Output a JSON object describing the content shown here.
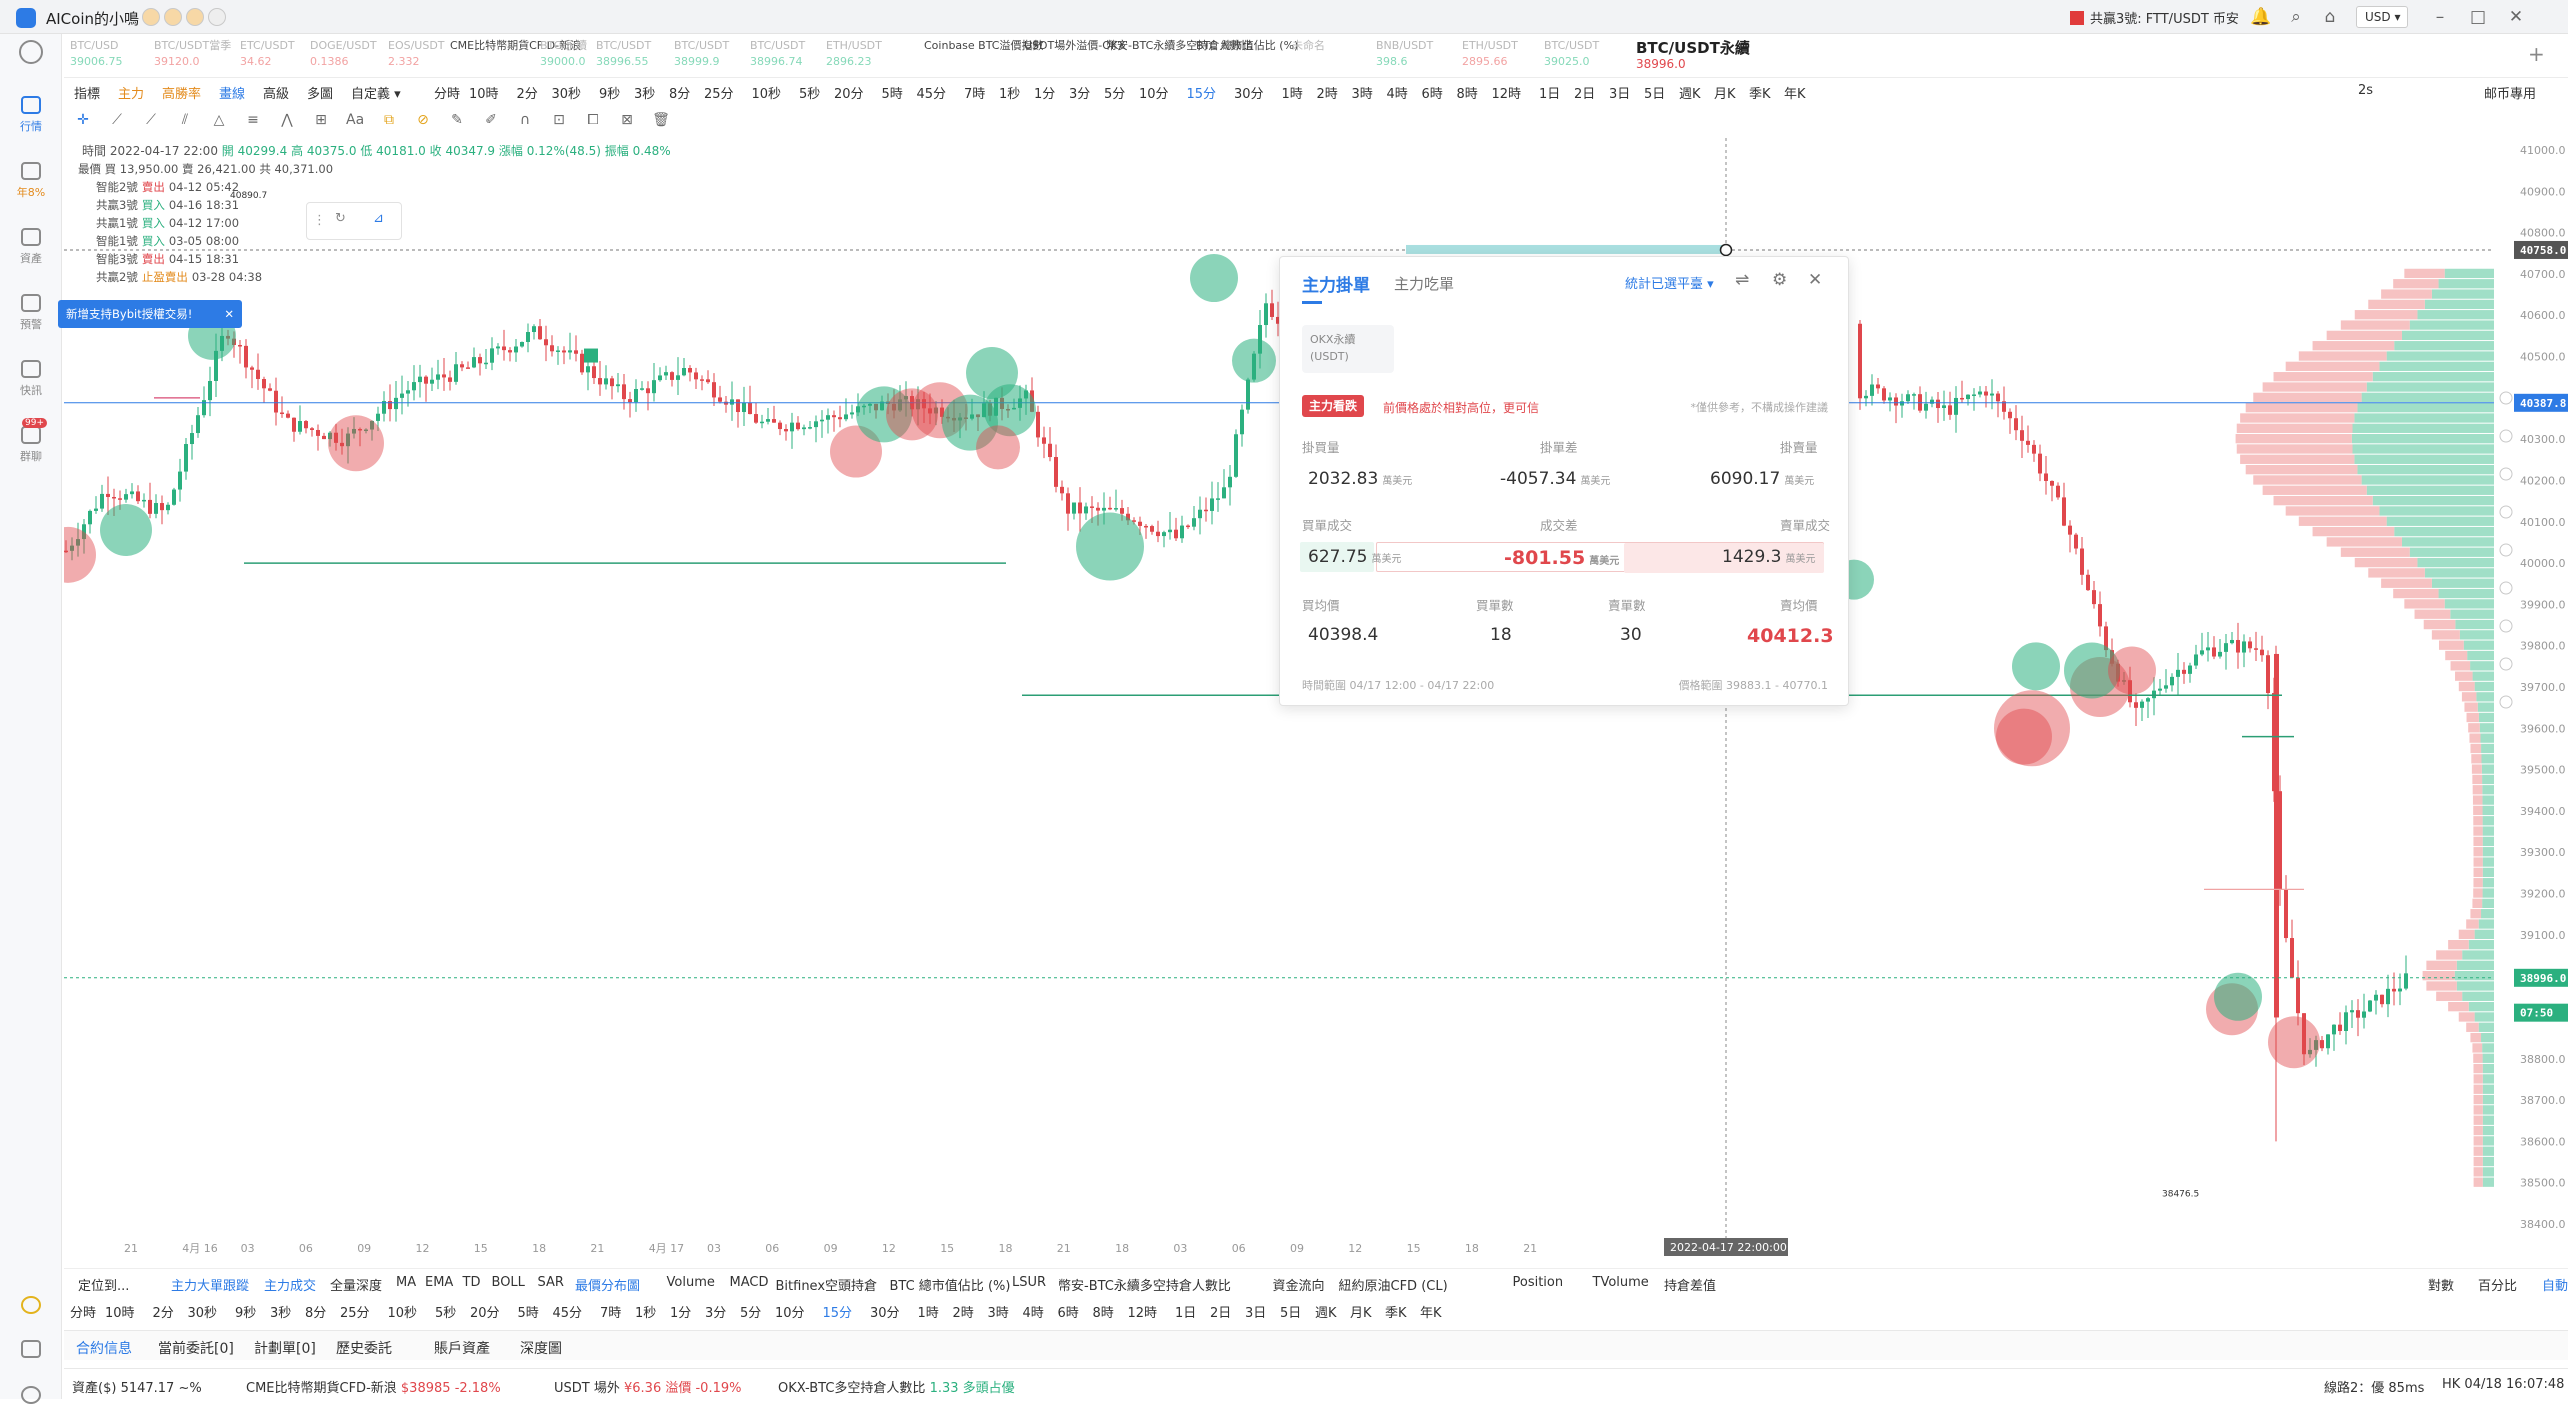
{
  "window": {
    "app_title": "AICoin的小鳴",
    "notice": "共贏3號: FTT/USDT 币安",
    "currency": "USD ▾"
  },
  "sidebar": {
    "items": [
      {
        "label": "行情",
        "icon": "chart-icon"
      },
      {
        "label": "年8%",
        "icon": "crop-icon"
      },
      {
        "label": "資產",
        "icon": "wallet-icon"
      },
      {
        "label": "預警",
        "icon": "alert-icon"
      },
      {
        "label": "快訊",
        "icon": "news-icon"
      },
      {
        "label": "群聊",
        "icon": "chat-icon",
        "badge": "99+"
      }
    ]
  },
  "tickers": [
    {
      "name": "BTC/USD",
      "price": "39006.75",
      "dir": "up"
    },
    {
      "name": "BTC/USDT當季",
      "price": "39120.0",
      "dir": "down"
    },
    {
      "name": "ETC/USDT",
      "price": "34.62",
      "dir": "down"
    },
    {
      "name": "DOGE/USDT",
      "price": "0.1386",
      "dir": "down"
    },
    {
      "name": "EOS/USDT",
      "price": "2.332",
      "dir": "down"
    },
    {
      "name": "CME比特幣期貨CF D-新浪",
      "price": "",
      "dir": "dark"
    },
    {
      "name": "BTC/永續",
      "price": "39000.0",
      "dir": "up"
    },
    {
      "name": "BTC/USDT",
      "price": "38996.55",
      "dir": "up"
    },
    {
      "name": "BTC/USDT",
      "price": "38999.9",
      "dir": "up"
    },
    {
      "name": "BTC/USDT",
      "price": "38996.74",
      "dir": "up"
    },
    {
      "name": "ETH/USDT",
      "price": "2896.23",
      "dir": "up"
    },
    {
      "name": "Coinbase BTC溢價指數",
      "price": "",
      "dir": "dark"
    },
    {
      "name": "USDT場外溢價-OKX",
      "price": "",
      "dir": "dark"
    },
    {
      "name": "幣安-BTC永續多空持倉人數比",
      "price": "",
      "dir": "dark"
    },
    {
      "name": "BTC 總市值佔比 (%)",
      "price": "",
      "dir": "dark"
    },
    {
      "name": "未命名",
      "price": "",
      "dir": "plain"
    },
    {
      "name": "BNB/USDT",
      "price": "398.6",
      "dir": "up"
    },
    {
      "name": "ETH/USDT",
      "price": "2895.66",
      "dir": "down"
    },
    {
      "name": "BTC/USDT",
      "price": "39025.0",
      "dir": "up"
    }
  ],
  "active_ticker": {
    "name": "BTC/USDT永續",
    "price": "38996.0"
  },
  "toolbar": {
    "timeframes": [
      "指標",
      "主力",
      "高勝率",
      "畫線",
      "高級",
      "多圖",
      "自定義 ▾",
      "分時",
      "10時",
      "2分",
      "30秒",
      "9秒",
      "3秒",
      "8分",
      "25分",
      "10秒",
      "5秒",
      "20分",
      "5時",
      "45分",
      "7時",
      "1秒",
      "1分",
      "3分",
      "5分",
      "10分",
      "15分",
      "30分",
      "1時",
      "2時",
      "3時",
      "4時",
      "6時",
      "8時",
      "12時",
      "1日",
      "2日",
      "3日",
      "5日",
      "週K",
      "月K",
      "季K",
      "年K"
    ],
    "active_tf": "15分",
    "right": [
      "2s",
      "邮币專用"
    ]
  },
  "ohlc": {
    "time": "時間 2022-04-17 22:00",
    "open": "開 40299.4",
    "high": "高 40375.0",
    "low": "低 40181.0",
    "close": "收 40347.9",
    "change": "漲幅 0.12%(48.5)",
    "amp": "振幅 0.48%"
  },
  "legend": {
    "head": "最價 買 13,950.00 賣 26,421.00 共 40,371.00",
    "rows": [
      {
        "who": "智能2號",
        "action": "賣出",
        "type": "s",
        "time": "04-12 05:42"
      },
      {
        "who": "共贏3號",
        "action": "買入",
        "type": "b",
        "time": "04-16 18:31"
      },
      {
        "who": "共贏1號",
        "action": "買入",
        "type": "b",
        "time": "04-12 17:00"
      },
      {
        "who": "智能1號",
        "action": "買入",
        "type": "b",
        "time": "03-05 08:00"
      },
      {
        "who": "智能3號",
        "action": "賣出",
        "type": "s",
        "time": "04-15 18:31"
      },
      {
        "who": "共贏2號",
        "action": "止盈賣出",
        "type": "o",
        "time": "03-28 04:38"
      }
    ]
  },
  "tooltip": "新增支持Bybit授權交易!",
  "marker_price": "40890.7",
  "panel": {
    "tab_active": "主力掛單",
    "tab_other": "主力吃單",
    "filter": "統計已選平臺 ▾",
    "exchange": "OKX永續(USDT)",
    "badge": "主力看跌",
    "hint": "前價格處於相對高位，更可信",
    "disclaimer": "*僅供參考，不構成操作建議",
    "labels1": [
      "掛買量",
      "掛單差",
      "掛賣量"
    ],
    "values1": [
      "2032.83",
      "-4057.34",
      "6090.17"
    ],
    "labels2": [
      "買單成交",
      "成交差",
      "賣單成交"
    ],
    "values2": [
      "627.75",
      "-801.55",
      "1429.3"
    ],
    "unit": "萬美元",
    "labels3": [
      "買均價",
      "買單數",
      "賣單數",
      "賣均價"
    ],
    "values3": [
      "40398.4",
      "18",
      "30",
      "40412.3"
    ],
    "time_range": "時間範圍 04/17 12:00 - 04/17 22:00",
    "price_range": "價格範圍 39883.1 - 40770.1"
  },
  "price_axis": [
    "41000.0",
    "40900.0",
    "40800.0",
    "40700.0",
    "40600.0",
    "40500.0",
    "40400.0",
    "40300.0",
    "40200.0",
    "40100.0",
    "40000.0",
    "39900.0",
    "39800.0",
    "39700.0",
    "39600.0",
    "39500.0",
    "39400.0",
    "39300.0",
    "39200.0",
    "39100.0",
    "39000.0",
    "38900.0",
    "38800.0",
    "38700.0",
    "38600.0",
    "38500.0",
    "38400.0"
  ],
  "price_tags": [
    {
      "label": "40758.0",
      "price": 40758,
      "color": "#555555"
    },
    {
      "label": "40387.8",
      "price": 40388,
      "color": "#2d7be5"
    },
    {
      "label": "38996.0",
      "price": 38996,
      "color": "#2bb07f"
    },
    {
      "label": "07:50",
      "price": 38960,
      "color": "#2bb07f"
    }
  ],
  "time_axis": [
    "21",
    "4月 16",
    "03",
    "06",
    "09",
    "12",
    "15",
    "18",
    "21",
    "4月 17",
    "03",
    "06",
    "09",
    "12",
    "15",
    "18",
    "21",
    "18",
    "03",
    "06",
    "09",
    "12",
    "15",
    "18",
    "21"
  ],
  "crosshair_time": "2022-04-17 22:00:00",
  "low_label": "38476.5",
  "indicators": [
    "定位到...",
    "主力大單跟蹤",
    "主力成交",
    "全量深度",
    "MA",
    "EMA",
    "TD",
    "BOLL",
    "SAR",
    "最價分布圖",
    "Volume",
    "MACD",
    "Bitfinex空頭持倉",
    "BTC 總市值佔比 (%)",
    "LSUR",
    "幣安-BTC永續多空持倉人數比",
    "資金流向",
    "紐約原油CFD (CL)",
    "Position",
    "TVolume",
    "持倉差值"
  ],
  "indicators_right": [
    "對數",
    "百分比",
    "自動"
  ],
  "tf2": [
    "分時",
    "10時",
    "2分",
    "30秒",
    "9秒",
    "3秒",
    "8分",
    "25分",
    "10秒",
    "5秒",
    "20分",
    "5時",
    "45分",
    "7時",
    "1秒",
    "1分",
    "3分",
    "5分",
    "10分",
    "15分",
    "30分",
    "1時",
    "2時",
    "3時",
    "4時",
    "6時",
    "8時",
    "12時",
    "1日",
    "2日",
    "3日",
    "5日",
    "週K",
    "月K",
    "季K",
    "年K"
  ],
  "bottom_tabs": [
    "合約信息",
    "當前委託[0]",
    "計劃單[0]",
    "歷史委託",
    "賬戶資產",
    "深度圖"
  ],
  "status": {
    "asset_label": "資產($)",
    "asset_value": "5147.17 ~%",
    "item1": "CME比特幣期貨CFD-新浪",
    "item1_price": "$38985",
    "item1_chg": "-2.18%",
    "item2": "USDT 場外",
    "item2_price": "¥6.36",
    "item2_prem": "溢價 -0.19%",
    "item3": "OKX-BTC多空持倉人數比",
    "item3_val": "1.33",
    "item3_txt": "多頭占優",
    "line": "線路2：優 85ms",
    "time": "HK 04/18 16:07:48"
  },
  "colors": {
    "up": "#2bb07f",
    "down": "#e0474c",
    "accent": "#2d7be5"
  }
}
